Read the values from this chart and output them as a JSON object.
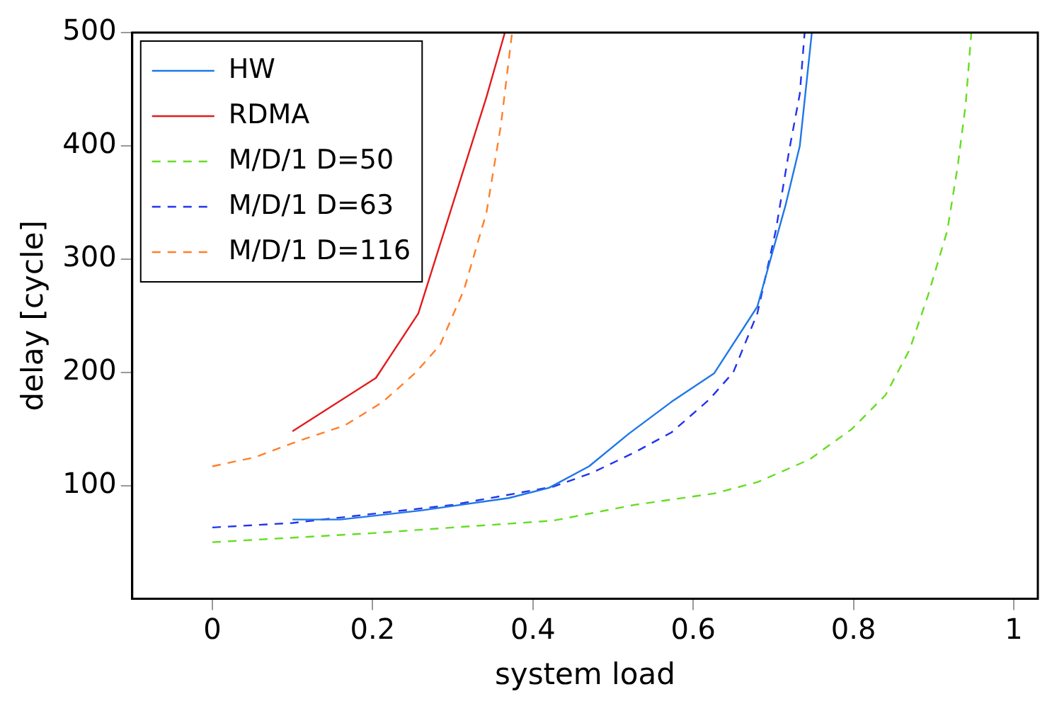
{
  "chart_data": {
    "type": "line",
    "xlabel": "system load",
    "ylabel": "delay [cycle]",
    "xlim": [
      -0.1,
      1.03
    ],
    "xticks": [
      0,
      0.2,
      0.4,
      0.6,
      0.8,
      1
    ],
    "ylim": [
      0,
      500
    ],
    "yticks": [
      100,
      200,
      300,
      400,
      500
    ],
    "grid": false,
    "legend": "top left",
    "series": [
      {
        "name": "HW",
        "color": "#1f77e8",
        "line_style": "solid",
        "x": [
          0.1,
          0.16,
          0.26,
          0.37,
          0.42,
          0.47,
          0.52,
          0.573,
          0.626,
          0.68,
          0.715,
          0.733,
          0.748
        ],
        "values": [
          70,
          70,
          78,
          89,
          98,
          117,
          146,
          174,
          199,
          258,
          347,
          400,
          500
        ]
      },
      {
        "name": "RDMA",
        "color": "#e41a1c",
        "line_style": "solid",
        "x": [
          0.1,
          0.204,
          0.257,
          0.342,
          0.365
        ],
        "values": [
          148,
          195,
          252,
          443,
          500
        ]
      },
      {
        "name": "M/D/1 D=50",
        "color": "#66dd22",
        "line_style": "dashed",
        "x": [
          0,
          0.1,
          0.2,
          0.3,
          0.425,
          0.527,
          0.626,
          0.68,
          0.745,
          0.798,
          0.84,
          0.87,
          0.893,
          0.917,
          0.93,
          0.94,
          0.947
        ],
        "values": [
          50,
          54,
          58,
          63,
          69,
          83,
          93,
          103,
          123,
          150,
          180,
          220,
          268,
          325,
          382,
          437,
          500
        ]
      },
      {
        "name": "M/D/1 D=63",
        "color": "#2233ee",
        "line_style": "dashed",
        "x": [
          0,
          0.1,
          0.2,
          0.3,
          0.425,
          0.473,
          0.526,
          0.573,
          0.62,
          0.65,
          0.68,
          0.703,
          0.72,
          0.733,
          0.739
        ],
        "values": [
          63,
          67,
          75,
          83,
          99,
          111,
          129,
          147,
          176,
          200,
          252,
          325,
          397,
          446,
          500
        ]
      },
      {
        "name": "M/D/1 D=116",
        "color": "#ff7f2a",
        "line_style": "dashed",
        "x": [
          0,
          0.053,
          0.11,
          0.165,
          0.213,
          0.254,
          0.284,
          0.314,
          0.342,
          0.36,
          0.374
        ],
        "values": [
          117,
          125,
          140,
          153,
          174,
          200,
          224,
          273,
          341,
          418,
          500
        ]
      }
    ]
  }
}
